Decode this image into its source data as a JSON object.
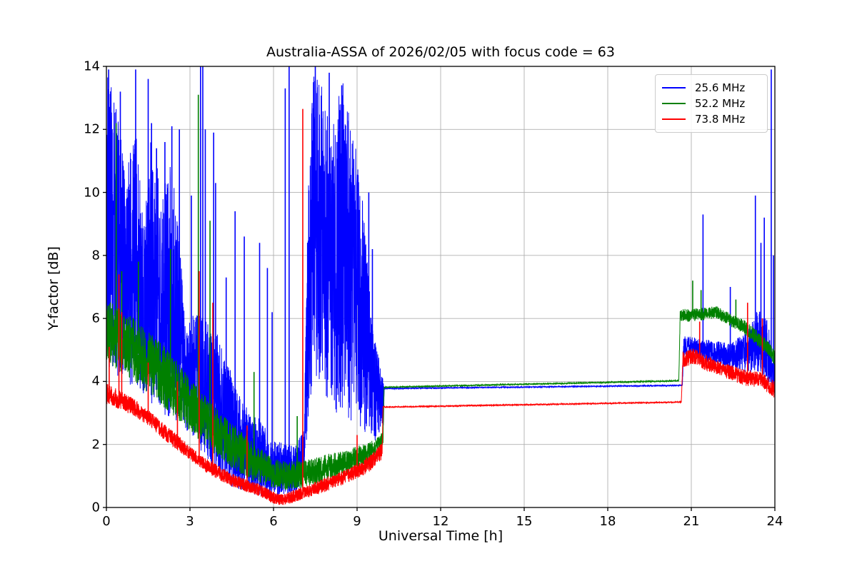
{
  "figure": {
    "title": "Australia-ASSA of 2026/02/05 with focus code = 63",
    "xlabel": "Universal Time [h]",
    "ylabel": "Y-factor [dB]",
    "background_color": "#ffffff",
    "grid_color": "#b0b0b0",
    "axis_color": "#000000"
  },
  "legend": {
    "items": [
      {
        "label": "25.6 MHz",
        "color": "#0000ff"
      },
      {
        "label": "52.2 MHz",
        "color": "#008000"
      },
      {
        "label": "73.8 MHz",
        "color": "#ff0000"
      }
    ]
  },
  "chart_data": {
    "type": "line",
    "title": "Australia-ASSA of 2026/02/05 with focus code = 63",
    "xlabel": "Universal Time [h]",
    "ylabel": "Y-factor [dB]",
    "xlim": [
      0,
      24
    ],
    "ylim": [
      0,
      14
    ],
    "xticks": [
      0,
      3,
      6,
      9,
      12,
      15,
      18,
      21,
      24
    ],
    "yticks": [
      0,
      2,
      4,
      6,
      8,
      10,
      12,
      14
    ],
    "grid": true,
    "legend_position": "upper right",
    "note": "Noisy spectrometer Y-factor traces 0-10 h UT, constant interpolated values 10-20.6 h, noisy again 20.6-24 h. Bands are [x, envelope_low, envelope_high] in dB; spikes are [x, peak_dB].",
    "series": [
      {
        "name": "25.6 MHz",
        "color": "#0000ff",
        "band_keypoints": [
          [
            0.0,
            4.5,
            14.0
          ],
          [
            0.35,
            4.2,
            13.0
          ],
          [
            0.7,
            4.0,
            10.5
          ],
          [
            1.0,
            3.8,
            12.5
          ],
          [
            1.35,
            3.5,
            9.0
          ],
          [
            1.6,
            3.3,
            12.0
          ],
          [
            2.0,
            3.0,
            10.0
          ],
          [
            2.3,
            2.8,
            11.0
          ],
          [
            2.6,
            2.7,
            9.0
          ],
          [
            2.85,
            2.5,
            5.5
          ],
          [
            3.2,
            2.0,
            6.5
          ],
          [
            3.6,
            1.5,
            6.0
          ],
          [
            4.0,
            1.0,
            5.5
          ],
          [
            4.4,
            0.7,
            4.5
          ],
          [
            4.8,
            0.5,
            3.5
          ],
          [
            5.2,
            0.4,
            3.0
          ],
          [
            5.6,
            0.35,
            2.8
          ],
          [
            6.0,
            0.3,
            2.2
          ],
          [
            6.4,
            0.35,
            2.0
          ],
          [
            6.8,
            0.4,
            2.0
          ],
          [
            7.1,
            0.8,
            2.5
          ],
          [
            7.22,
            2.5,
            9.0
          ],
          [
            7.35,
            3.5,
            13.5
          ],
          [
            7.6,
            3.8,
            14.0
          ],
          [
            7.9,
            3.3,
            12.5
          ],
          [
            8.2,
            3.0,
            13.0
          ],
          [
            8.5,
            2.9,
            13.5
          ],
          [
            8.8,
            2.7,
            12.0
          ],
          [
            9.1,
            2.5,
            11.0
          ],
          [
            9.35,
            2.3,
            8.0
          ],
          [
            9.6,
            2.1,
            5.5
          ],
          [
            9.95,
            2.3,
            4.2
          ],
          [
            9.97,
            3.76,
            3.79
          ],
          [
            20.68,
            3.86,
            3.89
          ],
          [
            20.72,
            4.75,
            5.45
          ],
          [
            21.2,
            4.7,
            5.4
          ],
          [
            21.8,
            4.55,
            5.3
          ],
          [
            22.4,
            4.4,
            5.2
          ],
          [
            23.0,
            4.3,
            5.6
          ],
          [
            23.4,
            4.3,
            6.3
          ],
          [
            23.7,
            4.1,
            6.0
          ],
          [
            24.0,
            3.6,
            4.9
          ]
        ],
        "spikes": [
          [
            0.08,
            13.9
          ],
          [
            0.15,
            12.3
          ],
          [
            0.5,
            13.2
          ],
          [
            1.05,
            13.9
          ],
          [
            1.5,
            13.6
          ],
          [
            1.62,
            12.2
          ],
          [
            1.8,
            11.4
          ],
          [
            2.1,
            11.6
          ],
          [
            2.35,
            12.1
          ],
          [
            2.62,
            12.0
          ],
          [
            3.05,
            9.9
          ],
          [
            3.38,
            14.0
          ],
          [
            3.46,
            14.0
          ],
          [
            3.55,
            12.0
          ],
          [
            3.85,
            11.9
          ],
          [
            3.92,
            10.3
          ],
          [
            4.3,
            7.3
          ],
          [
            4.62,
            9.4
          ],
          [
            4.95,
            8.6
          ],
          [
            5.5,
            8.4
          ],
          [
            5.78,
            7.6
          ],
          [
            5.95,
            6.2
          ],
          [
            6.42,
            13.3
          ],
          [
            6.56,
            14.0
          ],
          [
            7.5,
            14.0
          ],
          [
            8.0,
            13.8
          ],
          [
            8.45,
            13.4
          ],
          [
            9.42,
            10.0
          ],
          [
            9.55,
            8.2
          ],
          [
            21.42,
            9.3
          ],
          [
            22.4,
            7.0
          ],
          [
            23.3,
            9.9
          ],
          [
            23.5,
            8.4
          ],
          [
            23.62,
            9.2
          ],
          [
            23.87,
            13.9
          ],
          [
            23.95,
            8.0
          ]
        ]
      },
      {
        "name": "52.2 MHz",
        "color": "#008000",
        "band_keypoints": [
          [
            0.0,
            4.6,
            6.6
          ],
          [
            0.5,
            4.3,
            6.3
          ],
          [
            1.0,
            4.0,
            6.0
          ],
          [
            1.5,
            3.6,
            5.6
          ],
          [
            2.0,
            3.2,
            5.2
          ],
          [
            2.5,
            2.8,
            4.7
          ],
          [
            3.0,
            2.4,
            4.1
          ],
          [
            3.5,
            2.0,
            3.6
          ],
          [
            4.0,
            1.6,
            3.1
          ],
          [
            4.5,
            1.25,
            2.7
          ],
          [
            5.0,
            0.95,
            2.3
          ],
          [
            5.5,
            0.75,
            1.9
          ],
          [
            6.0,
            0.6,
            1.55
          ],
          [
            6.5,
            0.55,
            1.45
          ],
          [
            7.0,
            0.6,
            1.5
          ],
          [
            7.5,
            0.7,
            1.6
          ],
          [
            8.0,
            0.85,
            1.7
          ],
          [
            8.5,
            1.0,
            1.8
          ],
          [
            9.0,
            1.2,
            1.95
          ],
          [
            9.5,
            1.45,
            2.1
          ],
          [
            9.93,
            1.9,
            2.4
          ],
          [
            9.97,
            3.8,
            3.83
          ],
          [
            20.55,
            4.0,
            4.04
          ],
          [
            20.6,
            5.85,
            6.3
          ],
          [
            21.0,
            5.9,
            6.3
          ],
          [
            21.5,
            5.95,
            6.35
          ],
          [
            21.9,
            6.0,
            6.4
          ],
          [
            22.3,
            5.8,
            6.2
          ],
          [
            22.9,
            5.5,
            5.95
          ],
          [
            23.4,
            5.1,
            5.6
          ],
          [
            23.8,
            4.8,
            5.25
          ],
          [
            24.0,
            4.5,
            4.95
          ]
        ],
        "spikes": [
          [
            0.35,
            12.2
          ],
          [
            0.55,
            7.5
          ],
          [
            1.15,
            7.8
          ],
          [
            2.3,
            8.2
          ],
          [
            3.3,
            13.1
          ],
          [
            3.72,
            9.1
          ],
          [
            5.3,
            4.3
          ],
          [
            6.85,
            2.9
          ],
          [
            21.05,
            7.2
          ],
          [
            21.35,
            6.9
          ],
          [
            22.6,
            6.6
          ]
        ]
      },
      {
        "name": "73.8 MHz",
        "color": "#ff0000",
        "band_keypoints": [
          [
            0.0,
            3.3,
            3.95
          ],
          [
            0.5,
            3.1,
            3.7
          ],
          [
            1.0,
            2.9,
            3.45
          ],
          [
            1.5,
            2.6,
            3.1
          ],
          [
            2.0,
            2.2,
            2.7
          ],
          [
            2.5,
            1.85,
            2.35
          ],
          [
            3.0,
            1.5,
            1.95
          ],
          [
            3.5,
            1.15,
            1.6
          ],
          [
            4.0,
            0.9,
            1.35
          ],
          [
            4.5,
            0.65,
            1.1
          ],
          [
            5.0,
            0.5,
            0.9
          ],
          [
            5.5,
            0.35,
            0.75
          ],
          [
            6.0,
            0.12,
            0.5
          ],
          [
            6.3,
            0.06,
            0.42
          ],
          [
            6.7,
            0.15,
            0.55
          ],
          [
            7.2,
            0.3,
            0.7
          ],
          [
            7.7,
            0.45,
            0.9
          ],
          [
            8.2,
            0.6,
            1.05
          ],
          [
            8.7,
            0.8,
            1.25
          ],
          [
            9.2,
            1.0,
            1.5
          ],
          [
            9.6,
            1.25,
            1.8
          ],
          [
            9.9,
            1.5,
            2.05
          ],
          [
            9.93,
            3.17,
            3.2
          ],
          [
            20.64,
            3.33,
            3.36
          ],
          [
            20.7,
            4.45,
            4.95
          ],
          [
            21.1,
            4.55,
            5.05
          ],
          [
            21.5,
            4.35,
            4.85
          ],
          [
            22.0,
            4.2,
            4.65
          ],
          [
            22.5,
            4.0,
            4.5
          ],
          [
            23.0,
            3.85,
            4.35
          ],
          [
            23.5,
            3.8,
            4.3
          ],
          [
            24.0,
            3.45,
            4.0
          ]
        ],
        "spikes": [
          [
            0.1,
            5.1
          ],
          [
            0.45,
            7.4
          ],
          [
            0.55,
            6.2
          ],
          [
            1.5,
            4.6
          ],
          [
            2.55,
            4.0
          ],
          [
            3.33,
            7.5
          ],
          [
            3.82,
            6.5
          ],
          [
            5.05,
            2.6
          ],
          [
            7.05,
            12.65
          ],
          [
            9.0,
            2.3
          ],
          [
            21.3,
            5.9
          ],
          [
            23.02,
            6.5
          ],
          [
            23.55,
            6.0
          ]
        ]
      }
    ]
  }
}
